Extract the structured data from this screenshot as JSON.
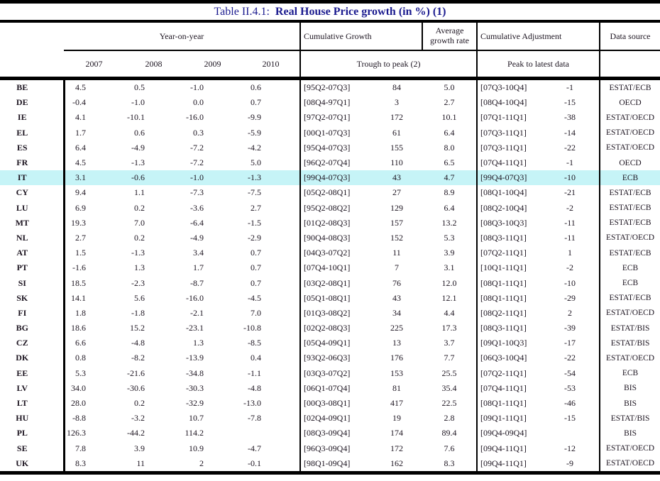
{
  "title": {
    "prefix": "Table II.4.1:",
    "main": "Real House Price growth (in %) (1)"
  },
  "colors": {
    "title_navy": "#1b1b8f",
    "highlight_cyan": "#c6f4f7",
    "rule_black": "#000000"
  },
  "header": {
    "group_year": "Year-on-year",
    "group_cumulative_growth": "Cumulative Growth",
    "group_avg_growth": "Average growth rate",
    "group_cumulative_adjustment": "Cumulative Adjustment",
    "group_data_source": "Data source",
    "year_2007": "2007",
    "year_2008": "2008",
    "year_2009": "2009",
    "year_2010": "2010",
    "sub_trough_to_peak": "Trough to peak (2)",
    "sub_peak_to_latest": "Peak to latest data"
  },
  "highlighted_country": "IT",
  "rows": [
    {
      "country": "BE",
      "y2007": "4.5",
      "y2008": "0.5",
      "y2009": "-1.0",
      "y2010": "0.6",
      "tp_range": "[95Q2-07Q3]",
      "tp_value": "84",
      "avg": "5.0",
      "pl_range": "[07Q3-10Q4]",
      "pl_value": "-1",
      "source": "ESTAT/ECB"
    },
    {
      "country": "DE",
      "y2007": "-0.4",
      "y2008": "-1.0",
      "y2009": "0.0",
      "y2010": "0.7",
      "tp_range": "[08Q4-97Q1]",
      "tp_value": "3",
      "avg": "2.7",
      "pl_range": "[08Q4-10Q4]",
      "pl_value": "-15",
      "source": "OECD"
    },
    {
      "country": "IE",
      "y2007": "4.1",
      "y2008": "-10.1",
      "y2009": "-16.0",
      "y2010": "-9.9",
      "tp_range": "[97Q2-07Q1]",
      "tp_value": "172",
      "avg": "10.1",
      "pl_range": "[07Q1-11Q1]",
      "pl_value": "-38",
      "source": "ESTAT/OECD"
    },
    {
      "country": "EL",
      "y2007": "1.7",
      "y2008": "0.6",
      "y2009": "0.3",
      "y2010": "-5.9",
      "tp_range": "[00Q1-07Q3]",
      "tp_value": "61",
      "avg": "6.4",
      "pl_range": "[07Q3-11Q1]",
      "pl_value": "-14",
      "source": "ESTAT/OECD"
    },
    {
      "country": "ES",
      "y2007": "6.4",
      "y2008": "-4.9",
      "y2009": "-7.2",
      "y2010": "-4.2",
      "tp_range": "[95Q4-07Q3]",
      "tp_value": "155",
      "avg": "8.0",
      "pl_range": "[07Q3-11Q1]",
      "pl_value": "-22",
      "source": "ESTAT/OECD"
    },
    {
      "country": "FR",
      "y2007": "4.5",
      "y2008": "-1.3",
      "y2009": "-7.2",
      "y2010": "5.0",
      "tp_range": "[96Q2-07Q4]",
      "tp_value": "110",
      "avg": "6.5",
      "pl_range": "[07Q4-11Q1]",
      "pl_value": "-1",
      "source": "OECD"
    },
    {
      "country": "IT",
      "y2007": "3.1",
      "y2008": "-0.6",
      "y2009": "-1.0",
      "y2010": "-1.3",
      "tp_range": "[99Q4-07Q3]",
      "tp_value": "43",
      "avg": "4.7",
      "pl_range": "[99Q4-07Q3]",
      "pl_value": "-10",
      "source": "ECB"
    },
    {
      "country": "CY",
      "y2007": "9.4",
      "y2008": "1.1",
      "y2009": "-7.3",
      "y2010": "-7.5",
      "tp_range": "[05Q2-08Q1]",
      "tp_value": "27",
      "avg": "8.9",
      "pl_range": "[08Q1-10Q4]",
      "pl_value": "-21",
      "source": "ESTAT/ECB"
    },
    {
      "country": "LU",
      "y2007": "6.9",
      "y2008": "0.2",
      "y2009": "-3.6",
      "y2010": "2.7",
      "tp_range": "[95Q2-08Q2]",
      "tp_value": "129",
      "avg": "6.4",
      "pl_range": "[08Q2-10Q4]",
      "pl_value": "-2",
      "source": "ESTAT/ECB"
    },
    {
      "country": "MT",
      "y2007": "19.3",
      "y2008": "7.0",
      "y2009": "-6.4",
      "y2010": "-1.5",
      "tp_range": "[01Q2-08Q3]",
      "tp_value": "157",
      "avg": "13.2",
      "pl_range": "[08Q3-10Q3]",
      "pl_value": "-11",
      "source": "ESTAT/ECB"
    },
    {
      "country": "NL",
      "y2007": "2.7",
      "y2008": "0.2",
      "y2009": "-4.9",
      "y2010": "-2.9",
      "tp_range": "[90Q4-08Q3]",
      "tp_value": "152",
      "avg": "5.3",
      "pl_range": "[08Q3-11Q1]",
      "pl_value": "-11",
      "source": "ESTAT/OECD"
    },
    {
      "country": "AT",
      "y2007": "1.5",
      "y2008": "-1.3",
      "y2009": "3.4",
      "y2010": "0.7",
      "tp_range": "[04Q3-07Q2]",
      "tp_value": "11",
      "avg": "3.9",
      "pl_range": "[07Q2-11Q1]",
      "pl_value": "1",
      "source": "ESTAT/ECB"
    },
    {
      "country": "PT",
      "y2007": "-1.6",
      "y2008": "1.3",
      "y2009": "1.7",
      "y2010": "0.7",
      "tp_range": "[07Q4-10Q1]",
      "tp_value": "7",
      "avg": "3.1",
      "pl_range": "[10Q1-11Q1]",
      "pl_value": "-2",
      "source": "ECB"
    },
    {
      "country": "SI",
      "y2007": "18.5",
      "y2008": "-2.3",
      "y2009": "-8.7",
      "y2010": "0.7",
      "tp_range": "[03Q2-08Q1]",
      "tp_value": "76",
      "avg": "12.0",
      "pl_range": "[08Q1-11Q1]",
      "pl_value": "-10",
      "source": "ECB"
    },
    {
      "country": "SK",
      "y2007": "14.1",
      "y2008": "5.6",
      "y2009": "-16.0",
      "y2010": "-4.5",
      "tp_range": "[05Q1-08Q1]",
      "tp_value": "43",
      "avg": "12.1",
      "pl_range": "[08Q1-11Q1]",
      "pl_value": "-29",
      "source": "ESTAT/ECB"
    },
    {
      "country": "FI",
      "y2007": "1.8",
      "y2008": "-1.8",
      "y2009": "-2.1",
      "y2010": "7.0",
      "tp_range": "[01Q3-08Q2]",
      "tp_value": "34",
      "avg": "4.4",
      "pl_range": "[08Q2-11Q1]",
      "pl_value": "2",
      "source": "ESTAT/OECD"
    },
    {
      "country": "BG",
      "y2007": "18.6",
      "y2008": "15.2",
      "y2009": "-23.1",
      "y2010": "-10.8",
      "tp_range": "[02Q2-08Q3]",
      "tp_value": "225",
      "avg": "17.3",
      "pl_range": "[08Q3-11Q1]",
      "pl_value": "-39",
      "source": "ESTAT/BIS"
    },
    {
      "country": "CZ",
      "y2007": "6.6",
      "y2008": "-4.8",
      "y2009": "1.3",
      "y2010": "-8.5",
      "tp_range": "[05Q4-09Q1]",
      "tp_value": "13",
      "avg": "3.7",
      "pl_range": "[09Q1-10Q3]",
      "pl_value": "-17",
      "source": "ESTAT/BIS"
    },
    {
      "country": "DK",
      "y2007": "0.8",
      "y2008": "-8.2",
      "y2009": "-13.9",
      "y2010": "0.4",
      "tp_range": "[93Q2-06Q3]",
      "tp_value": "176",
      "avg": "7.7",
      "pl_range": "[06Q3-10Q4]",
      "pl_value": "-22",
      "source": "ESTAT/OECD"
    },
    {
      "country": "EE",
      "y2007": "5.3",
      "y2008": "-21.6",
      "y2009": "-34.8",
      "y2010": "-1.1",
      "tp_range": "[03Q3-07Q2]",
      "tp_value": "153",
      "avg": "25.5",
      "pl_range": "[07Q2-11Q1]",
      "pl_value": "-54",
      "source": "ECB"
    },
    {
      "country": "LV",
      "y2007": "34.0",
      "y2008": "-30.6",
      "y2009": "-30.3",
      "y2010": "-4.8",
      "tp_range": "[06Q1-07Q4]",
      "tp_value": "81",
      "avg": "35.4",
      "pl_range": "[07Q4-11Q1]",
      "pl_value": "-53",
      "source": "BIS"
    },
    {
      "country": "LT",
      "y2007": "28.0",
      "y2008": "0.2",
      "y2009": "-32.9",
      "y2010": "-13.0",
      "tp_range": "[00Q3-08Q1]",
      "tp_value": "417",
      "avg": "22.5",
      "pl_range": "[08Q1-11Q1]",
      "pl_value": "-46",
      "source": "BIS"
    },
    {
      "country": "HU",
      "y2007": "-8.8",
      "y2008": "-3.2",
      "y2009": "10.7",
      "y2010": "-7.8",
      "tp_range": "[02Q4-09Q1]",
      "tp_value": "19",
      "avg": "2.8",
      "pl_range": "[09Q1-11Q1]",
      "pl_value": "-15",
      "source": "ESTAT/BIS"
    },
    {
      "country": "PL",
      "y2007": "126.3",
      "y2008": "-44.2",
      "y2009": "114.2",
      "y2010": "",
      "tp_range": "[08Q3-09Q4]",
      "tp_value": "174",
      "avg": "89.4",
      "pl_range": "[09Q4-09Q4]",
      "pl_value": "",
      "source": "BIS"
    },
    {
      "country": "SE",
      "y2007": "7.8",
      "y2008": "3.9",
      "y2009": "10.9",
      "y2010": "-4.7",
      "tp_range": "[96Q3-09Q4]",
      "tp_value": "172",
      "avg": "7.6",
      "pl_range": "[09Q4-11Q1]",
      "pl_value": "-12",
      "source": "ESTAT/OECD"
    },
    {
      "country": "UK",
      "y2007": "8.3",
      "y2008": "11",
      "y2009": "2",
      "y2010": "-0.1",
      "tp_range": "[98Q1-09Q4]",
      "tp_value": "162",
      "avg": "8.3",
      "pl_range": "[09Q4-11Q1]",
      "pl_value": "-9",
      "source": "ESTAT/OECD"
    }
  ]
}
